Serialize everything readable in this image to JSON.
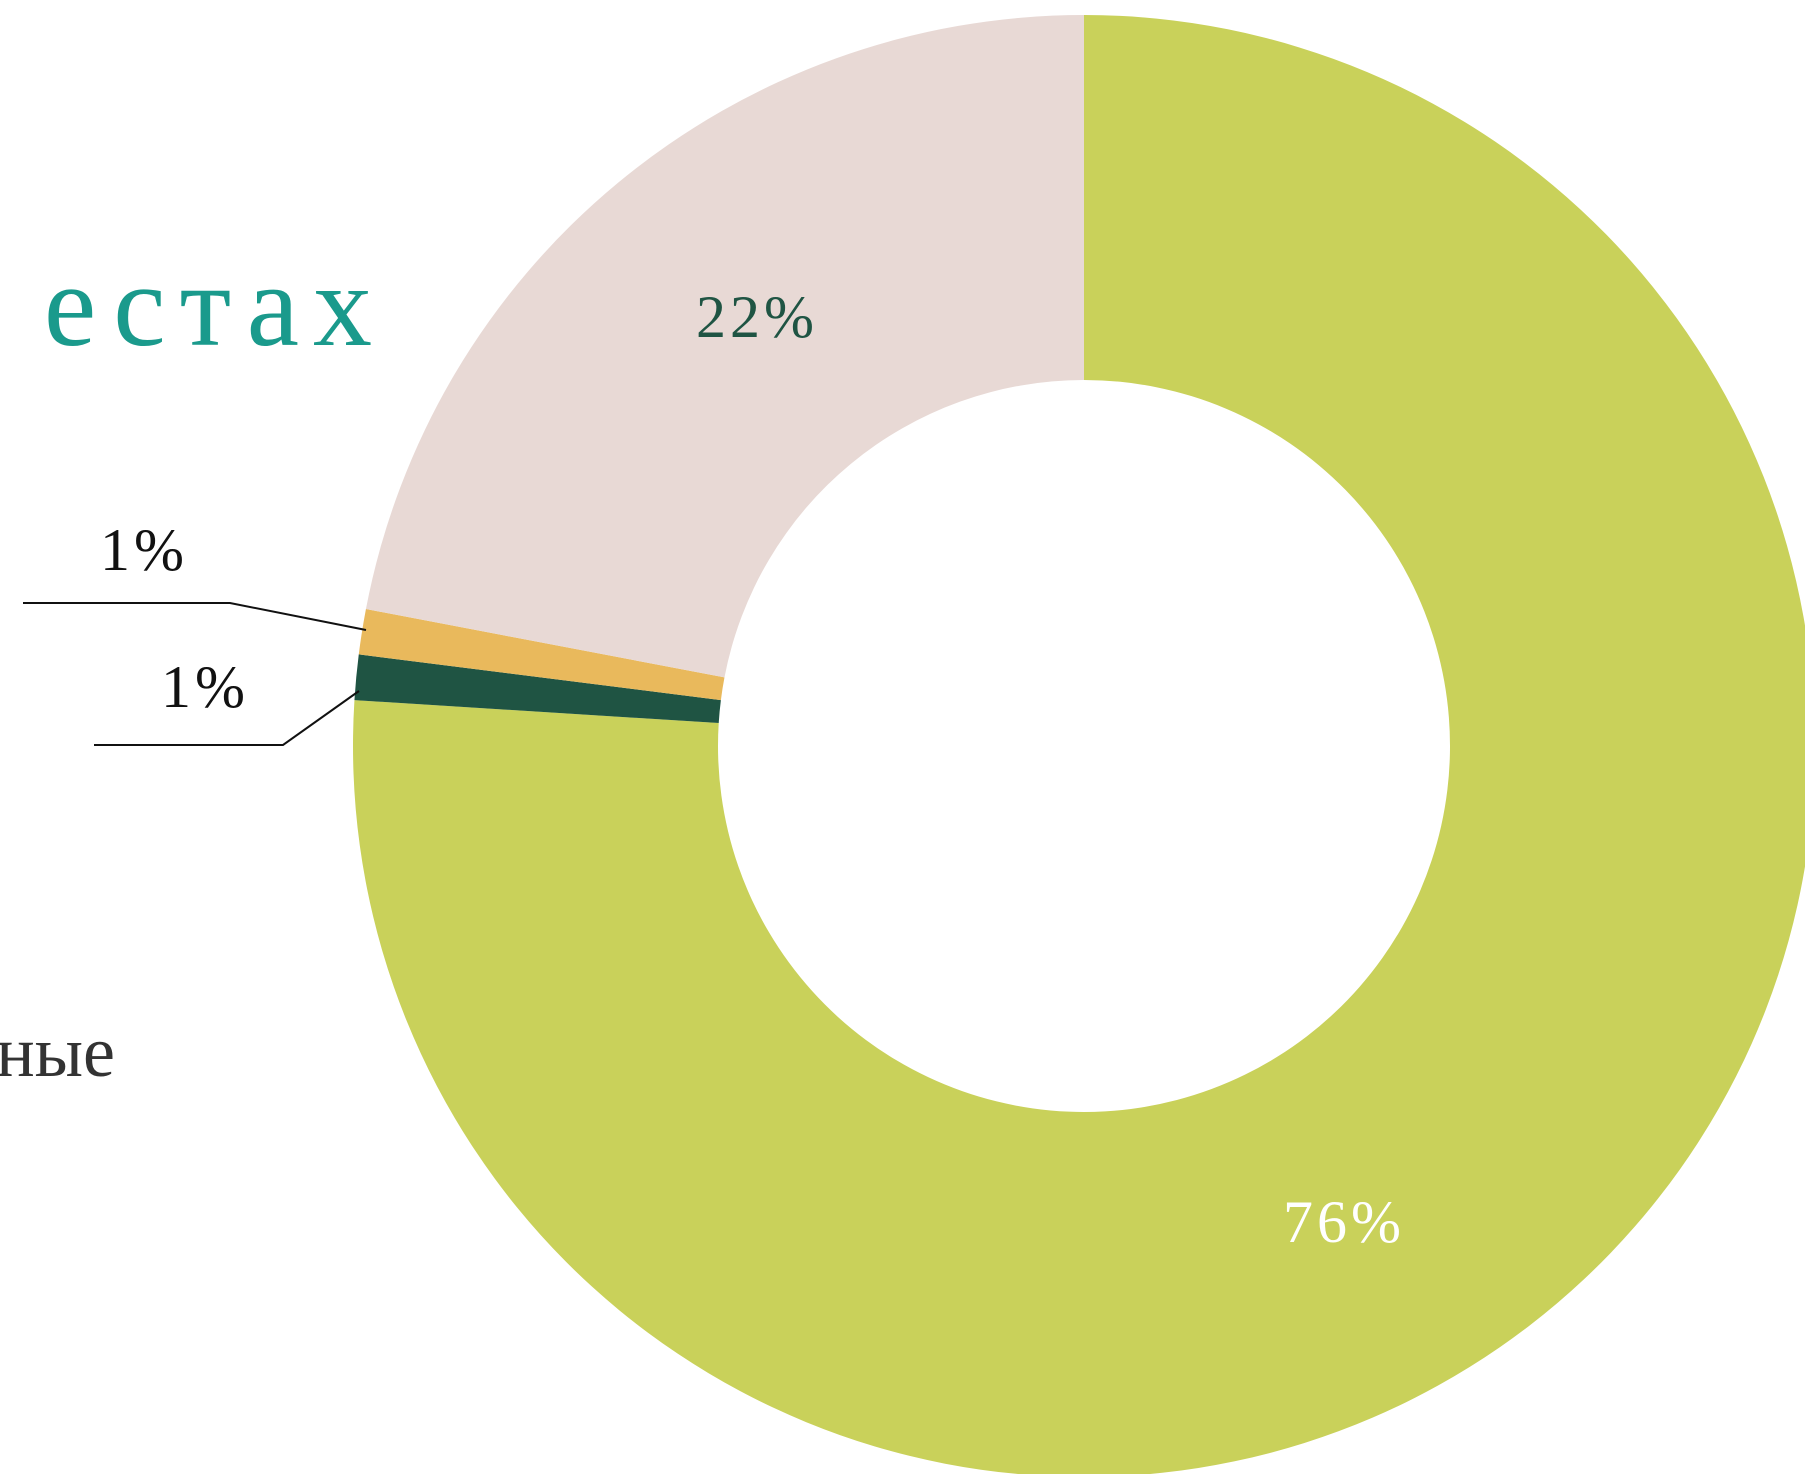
{
  "title_fragment": "естах",
  "text_fragment": "ные",
  "chart_data": {
    "type": "donut",
    "values": [
      76,
      1,
      1,
      22
    ],
    "value_labels": [
      "76%",
      "1%",
      "1%",
      "22%"
    ],
    "colors": [
      "#c9d15a",
      "#1f5443",
      "#e9b95c",
      "#e8d9d5"
    ]
  }
}
